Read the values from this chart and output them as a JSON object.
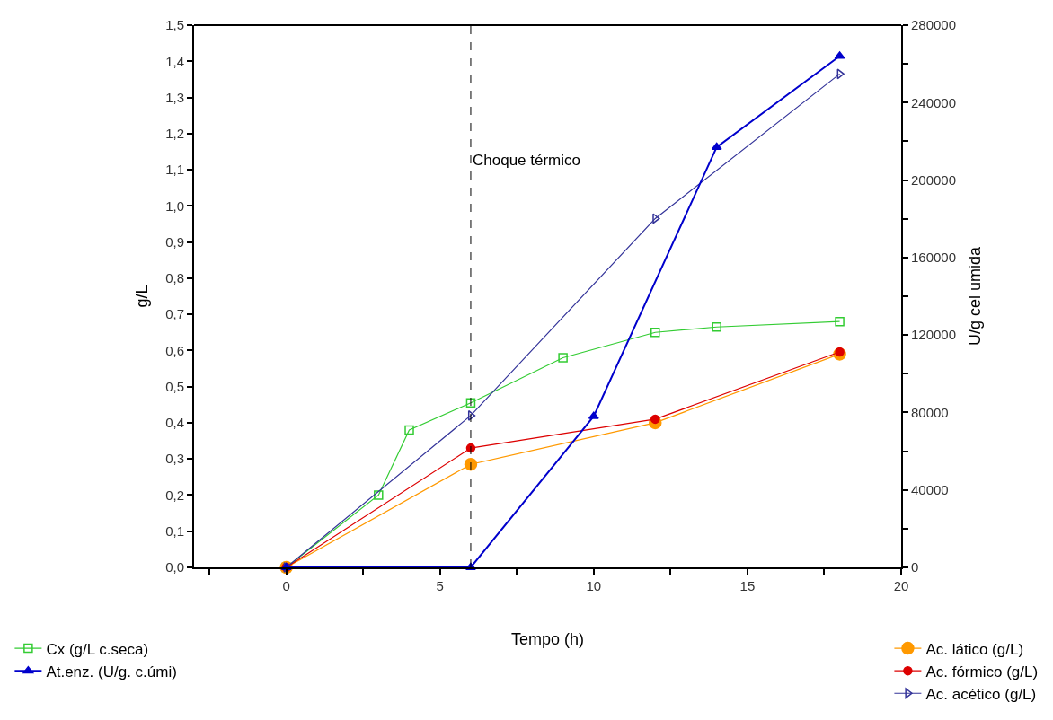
{
  "chart_data": {
    "type": "line",
    "xlabel": "Tempo (h)",
    "ylabel": "g/L",
    "y2label": "U/g cel umida",
    "series": [
      {
        "name": "Cx (g/L c.seca)",
        "color": "#33cc33",
        "marker": "square",
        "x": [
          0,
          3,
          4,
          6,
          9,
          12,
          14,
          18
        ],
        "values": [
          0,
          0.2,
          0.38,
          0.455,
          0.58,
          0.65,
          0.665,
          0.68
        ]
      },
      {
        "name": "At.enz. (U/g. c.úmi)",
        "color": "#0000cc",
        "marker": "triangle",
        "axis": "y2",
        "x": [
          0,
          6,
          10,
          14,
          18
        ],
        "values": [
          0,
          0,
          78000,
          217000,
          264000
        ]
      },
      {
        "name": "Ac. lático (g/L)",
        "color": "#ff9900",
        "marker": "circle",
        "x": [
          0,
          6,
          12,
          18
        ],
        "values": [
          0,
          0.285,
          0.4,
          0.59
        ]
      },
      {
        "name": "Ac. fórmico (g/L)",
        "color": "#dd0000",
        "marker": "circle",
        "x": [
          0,
          6,
          12,
          18
        ],
        "values": [
          0,
          0.33,
          0.41,
          0.596
        ]
      },
      {
        "name": "Ac. acético (g/L)",
        "color": "#333399",
        "marker": "triangle-right",
        "x": [
          0,
          6,
          12,
          18
        ],
        "values": [
          0,
          0.42,
          0.965,
          1.365
        ]
      }
    ],
    "xlim": [
      -3,
      20
    ],
    "xticks": [
      {
        "value": -2.5,
        "label": null
      },
      0,
      {
        "value": 2.5,
        "label": null
      },
      5,
      {
        "value": 7.5,
        "label": null
      },
      10,
      {
        "value": 12.5,
        "label": null
      },
      15,
      {
        "value": 17.5,
        "label": null
      },
      20
    ],
    "ylim": [
      0,
      1.5
    ],
    "yticks": [
      {
        "value": 0,
        "label": "0,0"
      },
      {
        "value": 0.1,
        "label": "0,1"
      },
      {
        "value": 0.2,
        "label": "0,2"
      },
      {
        "value": 0.3,
        "label": "0,3"
      },
      {
        "value": 0.4,
        "label": "0,4"
      },
      {
        "value": 0.5,
        "label": "0,5"
      },
      {
        "value": 0.6,
        "label": "0,6"
      },
      {
        "value": 0.7,
        "label": "0,7"
      },
      {
        "value": 0.8,
        "label": "0,8"
      },
      {
        "value": 0.9,
        "label": "0,9"
      },
      {
        "value": 1.0,
        "label": "1,0"
      },
      {
        "value": 1.1,
        "label": "1,1"
      },
      {
        "value": 1.2,
        "label": "1,2"
      },
      {
        "value": 1.3,
        "label": "1,3"
      },
      {
        "value": 1.4,
        "label": "1,4"
      },
      {
        "value": 1.5,
        "label": "1,5"
      }
    ],
    "y2lim": [
      0,
      280000
    ],
    "y2ticks": [
      0,
      {
        "value": 20000,
        "label": null
      },
      40000,
      {
        "value": 60000,
        "label": null
      },
      80000,
      {
        "value": 100000,
        "label": null
      },
      120000,
      {
        "value": 140000,
        "label": null
      },
      160000,
      {
        "value": 180000,
        "label": null
      },
      200000,
      {
        "value": 220000,
        "label": null
      },
      240000,
      {
        "value": 260000,
        "label": null
      },
      280000
    ],
    "ref_lines": [
      {
        "axis": "x",
        "value": 6,
        "label": "Choque térmico",
        "color": "#000000",
        "line_style": "dashed"
      }
    ],
    "legend": "bottom"
  }
}
